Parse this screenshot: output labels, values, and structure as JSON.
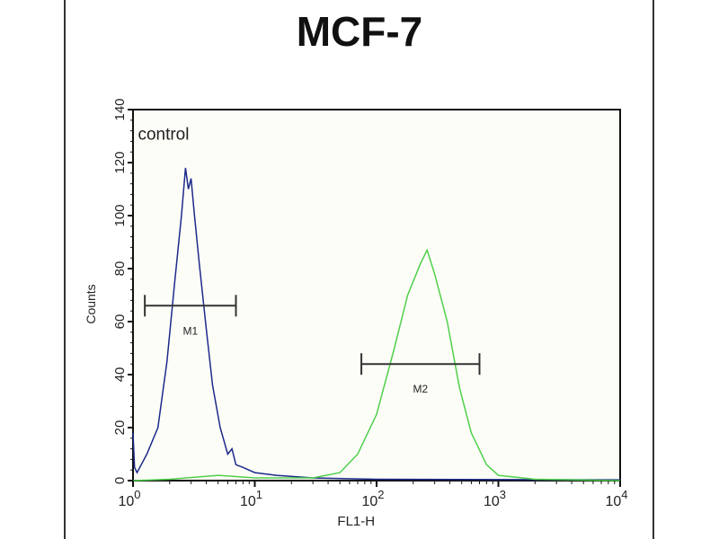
{
  "chart_data": {
    "type": "line",
    "title": "MCF-7",
    "xlabel": "FL1-H",
    "ylabel": "Counts",
    "x_scale": "log",
    "xlim": [
      1,
      10000
    ],
    "ylim": [
      0,
      140
    ],
    "x_ticks": [
      {
        "base": "10",
        "exp": "0",
        "value": 1
      },
      {
        "base": "10",
        "exp": "1",
        "value": 10
      },
      {
        "base": "10",
        "exp": "2",
        "value": 100
      },
      {
        "base": "10",
        "exp": "3",
        "value": 1000
      },
      {
        "base": "10",
        "exp": "4",
        "value": 10000
      }
    ],
    "y_ticks": [
      "0",
      "20",
      "40",
      "60",
      "80",
      "100",
      "120",
      "140"
    ],
    "grid": false,
    "annotations": [
      {
        "text": "control",
        "x": 1.3,
        "y": 130
      }
    ],
    "markers": [
      {
        "label": "M1",
        "x_start": 1.25,
        "x_end": 7,
        "y": 66,
        "color": "#333333"
      },
      {
        "label": "M2",
        "x_start": 75,
        "x_end": 700,
        "y": 44,
        "color": "#333333"
      }
    ],
    "series": [
      {
        "color": "#1c2a8a",
        "points": [
          [
            1.0,
            18
          ],
          [
            1.03,
            5
          ],
          [
            1.08,
            3
          ],
          [
            1.3,
            10
          ],
          [
            1.6,
            20
          ],
          [
            1.9,
            45
          ],
          [
            2.2,
            75
          ],
          [
            2.5,
            100
          ],
          [
            2.7,
            118
          ],
          [
            2.85,
            110
          ],
          [
            3.0,
            114
          ],
          [
            3.2,
            100
          ],
          [
            3.5,
            82
          ],
          [
            4.0,
            57
          ],
          [
            4.5,
            36
          ],
          [
            5.2,
            20
          ],
          [
            6,
            10
          ],
          [
            6.5,
            12
          ],
          [
            7,
            6
          ],
          [
            8,
            5
          ],
          [
            10,
            3
          ],
          [
            15,
            2
          ],
          [
            30,
            1
          ],
          [
            100,
            0.5
          ],
          [
            10000,
            0.3
          ]
        ]
      },
      {
        "color": "#4fd04a",
        "points": [
          [
            1.0,
            0
          ],
          [
            2,
            0.5
          ],
          [
            5,
            2
          ],
          [
            10,
            1
          ],
          [
            30,
            1
          ],
          [
            50,
            3
          ],
          [
            70,
            10
          ],
          [
            100,
            25
          ],
          [
            140,
            50
          ],
          [
            180,
            70
          ],
          [
            230,
            82
          ],
          [
            260,
            87
          ],
          [
            300,
            78
          ],
          [
            380,
            60
          ],
          [
            480,
            35
          ],
          [
            600,
            18
          ],
          [
            800,
            6
          ],
          [
            1000,
            2
          ],
          [
            2000,
            0.5
          ],
          [
            10000,
            0
          ]
        ]
      }
    ]
  }
}
